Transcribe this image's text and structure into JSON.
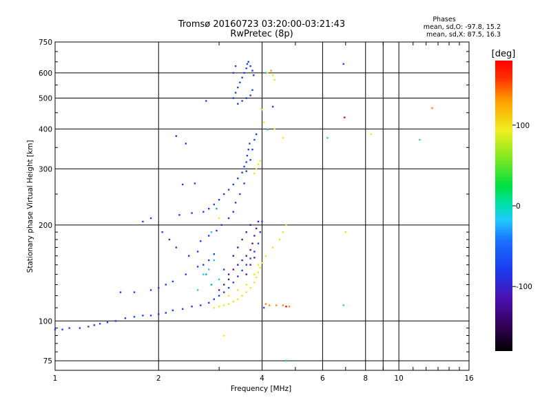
{
  "header": {
    "title_line1": "Tromsø 20160723 03:20:00-03:21:43",
    "title_line2": "RwPretec (8p)"
  },
  "phases_box": {
    "title": "Phases",
    "line_o": "mean, sd,O: -97.8, 15.2",
    "line_x": "mean, sd,X:  87.5, 16.3"
  },
  "chart_data": {
    "type": "scatter",
    "title": "Tromsø 20160723 03:20:00-03:21:43",
    "subtitle": "RwPretec (8p)",
    "xlabel": "Frequency [MHz]",
    "ylabel": "Stationary phase Virtual Height [km]",
    "x_scale": "log",
    "y_scale": "log",
    "xlim": [
      1,
      16
    ],
    "ylim": [
      70,
      750
    ],
    "x_ticks": [
      1,
      2,
      4,
      6,
      8,
      10,
      16
    ],
    "y_ticks": [
      75,
      100,
      200,
      300,
      400,
      500,
      600,
      750
    ],
    "grid": true,
    "colorbar": {
      "label": "[deg]",
      "min": -180,
      "max": 180,
      "ticks": [
        100,
        0,
        -100
      ],
      "colormap": "rainbow"
    },
    "series": [
      {
        "mode": "O",
        "phase_deg": -110,
        "color": "#1a3cf0",
        "points": [
          [
            1.0,
            94
          ],
          [
            1.05,
            94
          ],
          [
            1.1,
            95
          ],
          [
            1.18,
            95
          ],
          [
            1.25,
            96
          ],
          [
            1.3,
            97
          ],
          [
            1.35,
            98
          ],
          [
            1.42,
            99
          ],
          [
            1.5,
            100
          ],
          [
            1.6,
            102
          ],
          [
            1.7,
            103
          ],
          [
            1.8,
            104
          ],
          [
            1.9,
            104
          ],
          [
            2.0,
            105
          ],
          [
            2.1,
            106
          ],
          [
            2.2,
            108
          ],
          [
            2.35,
            109
          ],
          [
            2.5,
            111
          ],
          [
            2.65,
            112
          ],
          [
            2.8,
            114
          ],
          [
            2.9,
            117
          ],
          [
            3.0,
            120
          ],
          [
            3.1,
            123
          ],
          [
            3.2,
            127
          ],
          [
            3.3,
            132
          ],
          [
            3.4,
            138
          ],
          [
            3.5,
            144
          ],
          [
            3.6,
            150
          ],
          [
            3.7,
            157
          ],
          [
            3.8,
            165
          ],
          [
            3.9,
            175
          ],
          [
            3.95,
            190
          ],
          [
            4.0,
            205
          ],
          [
            1.55,
            123
          ],
          [
            1.7,
            123
          ],
          [
            1.9,
            125
          ],
          [
            2.0,
            127
          ],
          [
            2.1,
            130
          ],
          [
            2.2,
            133
          ],
          [
            2.4,
            140
          ],
          [
            2.6,
            148
          ],
          [
            2.8,
            155
          ],
          [
            2.9,
            162
          ],
          [
            2.65,
            178
          ],
          [
            2.8,
            185
          ],
          [
            2.95,
            192
          ],
          [
            3.05,
            200
          ],
          [
            3.2,
            210
          ],
          [
            3.3,
            220
          ],
          [
            3.35,
            235
          ],
          [
            3.45,
            250
          ],
          [
            3.55,
            270
          ],
          [
            3.6,
            295
          ],
          [
            3.7,
            320
          ],
          [
            3.75,
            345
          ],
          [
            3.8,
            370
          ],
          [
            3.85,
            385
          ],
          [
            2.3,
            215
          ],
          [
            2.5,
            218
          ],
          [
            2.7,
            220
          ],
          [
            2.8,
            225
          ],
          [
            2.9,
            232
          ],
          [
            3.0,
            240
          ],
          [
            3.1,
            250
          ],
          [
            3.2,
            258
          ],
          [
            3.3,
            268
          ],
          [
            3.4,
            280
          ],
          [
            3.5,
            292
          ],
          [
            3.55,
            305
          ],
          [
            3.6,
            315
          ],
          [
            3.62,
            330
          ],
          [
            3.65,
            345
          ],
          [
            3.68,
            360
          ],
          [
            3.3,
            500
          ],
          [
            3.35,
            520
          ],
          [
            3.4,
            540
          ],
          [
            3.45,
            560
          ],
          [
            3.5,
            580
          ],
          [
            3.55,
            600
          ],
          [
            3.6,
            620
          ],
          [
            3.62,
            640
          ],
          [
            3.65,
            650
          ],
          [
            3.7,
            630
          ],
          [
            3.75,
            610
          ],
          [
            3.78,
            590
          ],
          [
            3.4,
            480
          ],
          [
            3.5,
            490
          ],
          [
            3.6,
            500
          ],
          [
            3.7,
            510
          ],
          [
            3.75,
            530
          ],
          [
            3.3,
            600
          ],
          [
            3.35,
            630
          ],
          [
            2.75,
            490
          ],
          [
            1.8,
            205
          ],
          [
            1.9,
            210
          ],
          [
            2.05,
            190
          ],
          [
            2.15,
            180
          ],
          [
            2.25,
            170
          ],
          [
            2.45,
            160
          ],
          [
            2.6,
            165
          ],
          [
            2.35,
            268
          ],
          [
            2.55,
            270
          ],
          [
            2.25,
            380
          ],
          [
            2.4,
            360
          ],
          [
            4.3,
            470
          ],
          [
            6.9,
            640
          ],
          [
            2.7,
            150
          ],
          [
            3.1,
            145
          ],
          [
            4.05,
            110
          ],
          [
            4.7,
            75
          ]
        ]
      },
      {
        "mode": "O-deep",
        "phase_deg": -140,
        "color": "#5a10a0",
        "points": [
          [
            3.2,
            140
          ],
          [
            3.3,
            145
          ],
          [
            3.4,
            150
          ],
          [
            3.5,
            155
          ],
          [
            3.6,
            160
          ],
          [
            3.7,
            167
          ],
          [
            3.75,
            175
          ],
          [
            3.8,
            185
          ],
          [
            3.85,
            195
          ],
          [
            3.9,
            205
          ],
          [
            3.5,
            180
          ],
          [
            3.6,
            190
          ],
          [
            3.7,
            200
          ],
          [
            3.4,
            170
          ],
          [
            3.3,
            160
          ],
          [
            3.1,
            130
          ],
          [
            3.2,
            135
          ],
          [
            3.0,
            125
          ],
          [
            3.6,
            140
          ],
          [
            3.7,
            150
          ],
          [
            3.8,
            158
          ]
        ]
      },
      {
        "mode": "X",
        "phase_deg": 95,
        "color": "#e8e81c",
        "points": [
          [
            2.9,
            110
          ],
          [
            3.0,
            111
          ],
          [
            3.1,
            112
          ],
          [
            3.2,
            113
          ],
          [
            3.3,
            115
          ],
          [
            3.4,
            117
          ],
          [
            3.5,
            120
          ],
          [
            3.6,
            123
          ],
          [
            3.7,
            127
          ],
          [
            3.8,
            132
          ],
          [
            3.85,
            137
          ],
          [
            3.9,
            142
          ],
          [
            3.95,
            147
          ],
          [
            4.0,
            152
          ],
          [
            3.2,
            120
          ],
          [
            3.4,
            125
          ],
          [
            3.6,
            130
          ],
          [
            3.8,
            140
          ],
          [
            3.9,
            150
          ],
          [
            4.1,
            160
          ],
          [
            4.3,
            170
          ],
          [
            4.5,
            180
          ],
          [
            4.6,
            190
          ],
          [
            4.7,
            200
          ],
          [
            3.8,
            290
          ],
          [
            3.85,
            300
          ],
          [
            3.9,
            310
          ],
          [
            3.95,
            318
          ],
          [
            4.15,
            600
          ],
          [
            4.3,
            590
          ],
          [
            4.35,
            570
          ],
          [
            4.0,
            460
          ],
          [
            4.05,
            420
          ],
          [
            4.35,
            400
          ],
          [
            4.6,
            375
          ],
          [
            3.1,
            90
          ],
          [
            3.0,
            210
          ],
          [
            7.0,
            190
          ],
          [
            8.3,
            385
          ]
        ]
      },
      {
        "mode": "X-orange",
        "phase_deg": 130,
        "color": "#ff8c00",
        "points": [
          [
            4.4,
            112
          ],
          [
            4.6,
            112
          ],
          [
            4.8,
            111
          ],
          [
            4.1,
            113
          ],
          [
            4.2,
            112
          ],
          [
            12.5,
            465
          ],
          [
            4.1,
            600
          ],
          [
            4.25,
            610
          ]
        ]
      },
      {
        "mode": "X-red",
        "phase_deg": 170,
        "color": "#e8001c",
        "points": [
          [
            6.95,
            435
          ],
          [
            4.7,
            111
          ]
        ]
      },
      {
        "mode": "cyan",
        "phase_deg": -40,
        "color": "#22c8e0",
        "points": [
          [
            2.7,
            140
          ],
          [
            2.8,
            145
          ],
          [
            2.9,
            155
          ],
          [
            3.0,
            135
          ],
          [
            2.6,
            125
          ],
          [
            2.85,
            190
          ],
          [
            4.1,
            600
          ],
          [
            6.2,
            375
          ],
          [
            6.9,
            112
          ],
          [
            11.5,
            370
          ],
          [
            4.15,
            398
          ],
          [
            4.7,
            75
          ]
        ]
      },
      {
        "mode": "teal",
        "phase_deg": -20,
        "color": "#10b090",
        "points": [
          [
            2.95,
            225
          ],
          [
            2.75,
            140
          ],
          [
            2.85,
            130
          ]
        ]
      }
    ]
  },
  "colors": {
    "background": "#ffffff",
    "grid": "#000000"
  }
}
